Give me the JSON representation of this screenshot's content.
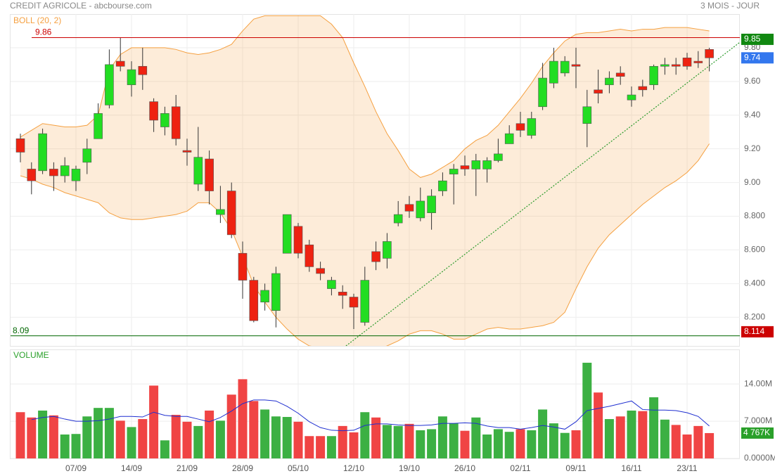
{
  "chart_data": [
    {
      "type": "candlestick",
      "title": "CREDIT AGRICOLE - abcbourse.com",
      "subtitle": "3 MOIS - JOUR",
      "categories": [
        null,
        null,
        null,
        null,
        null,
        "07/09",
        null,
        null,
        null,
        null,
        "14/09",
        null,
        null,
        null,
        null,
        "21/09",
        null,
        null,
        null,
        null,
        "28/09",
        null,
        null,
        null,
        null,
        "05/10",
        null,
        null,
        null,
        null,
        "12/10",
        null,
        null,
        null,
        null,
        "19/10",
        null,
        null,
        null,
        null,
        "26/10",
        null,
        null,
        null,
        null,
        "02/11",
        null,
        null,
        null,
        null,
        "09/11",
        null,
        null,
        null,
        null,
        "16/11",
        null,
        null,
        null,
        null,
        "23/11",
        null,
        null
      ],
      "open": [
        9.26,
        9.08,
        9.07,
        9.08,
        9.04,
        9.01,
        9.12,
        9.26,
        9.46,
        9.72,
        9.58,
        9.69,
        9.48,
        9.33,
        9.45,
        9.19,
        8.99,
        9.14,
        8.81,
        8.95,
        8.58,
        8.42,
        8.29,
        8.24,
        8.58,
        8.74,
        8.63,
        8.49,
        8.37,
        8.35,
        8.32,
        8.17,
        8.59,
        8.55,
        8.76,
        8.87,
        8.79,
        8.82,
        8.95,
        9.05,
        9.1,
        9.08,
        9.08,
        9.13,
        9.23,
        9.35,
        9.28,
        9.45,
        9.59,
        9.65,
        9.7,
        9.35,
        9.55,
        9.58,
        9.65,
        9.49,
        9.57,
        9.58,
        9.69,
        9.7,
        9.74,
        9.72,
        9.79
      ],
      "high": [
        9.29,
        9.12,
        9.32,
        9.12,
        9.15,
        9.1,
        9.26,
        9.47,
        9.79,
        9.86,
        9.72,
        9.8,
        9.5,
        9.45,
        9.52,
        9.26,
        9.33,
        9.19,
        8.98,
        9.0,
        8.65,
        8.44,
        8.4,
        8.5,
        8.81,
        8.76,
        8.66,
        8.53,
        8.44,
        8.39,
        8.34,
        8.5,
        8.65,
        8.7,
        8.89,
        8.92,
        8.97,
        8.96,
        9.06,
        9.11,
        9.16,
        9.17,
        9.15,
        9.26,
        9.34,
        9.42,
        9.42,
        9.71,
        9.8,
        9.75,
        9.8,
        9.55,
        9.67,
        9.66,
        9.69,
        9.57,
        9.61,
        9.7,
        9.74,
        9.74,
        9.77,
        9.78,
        9.8
      ],
      "low": [
        9.12,
        8.93,
        9.05,
        8.95,
        9.0,
        8.95,
        9.05,
        9.26,
        9.44,
        9.66,
        9.51,
        9.55,
        9.3,
        9.28,
        9.22,
        9.1,
        8.95,
        8.87,
        8.76,
        8.67,
        8.31,
        8.17,
        8.24,
        8.14,
        8.58,
        8.55,
        8.47,
        8.42,
        8.33,
        8.25,
        8.13,
        8.15,
        8.48,
        8.49,
        8.74,
        8.79,
        8.77,
        8.72,
        8.92,
        8.87,
        9.04,
        8.92,
        9.0,
        9.12,
        9.23,
        9.27,
        9.26,
        9.43,
        9.56,
        9.63,
        9.56,
        9.21,
        9.47,
        9.53,
        9.58,
        9.45,
        9.51,
        9.55,
        9.64,
        9.64,
        9.67,
        9.68,
        9.66
      ],
      "close": [
        9.18,
        9.01,
        9.29,
        9.04,
        9.1,
        9.08,
        9.2,
        9.41,
        9.7,
        9.69,
        9.67,
        9.64,
        9.37,
        9.41,
        9.26,
        9.18,
        9.15,
        8.95,
        8.84,
        8.69,
        8.42,
        8.18,
        8.36,
        8.46,
        8.81,
        8.58,
        8.5,
        8.46,
        8.42,
        8.33,
        8.26,
        8.42,
        8.53,
        8.65,
        8.81,
        8.83,
        8.89,
        8.92,
        9.01,
        9.08,
        9.08,
        9.13,
        9.13,
        9.17,
        9.29,
        9.31,
        9.38,
        9.62,
        9.72,
        9.72,
        9.69,
        9.45,
        9.53,
        9.62,
        9.63,
        9.52,
        9.55,
        9.69,
        9.7,
        9.69,
        9.69,
        9.71,
        9.74
      ],
      "up_color": "#22dd22",
      "down_color": "#ee2211",
      "ylim": [
        8.03,
        10.0
      ],
      "yticks": [
        {
          "value": 8.2,
          "label": "8.200"
        },
        {
          "value": 8.4,
          "label": "8.400"
        },
        {
          "value": 8.6,
          "label": "8.600"
        },
        {
          "value": 8.8,
          "label": "8.800"
        },
        {
          "value": 9,
          "label": "9.00"
        },
        {
          "value": 9.2,
          "label": "9.20"
        },
        {
          "value": 9.4,
          "label": "9.40"
        },
        {
          "value": 9.6,
          "label": "9.60"
        },
        {
          "value": 9.8,
          "label": "9.80"
        }
      ],
      "grid": true,
      "bands": {
        "name": "BOLL (20, 2)",
        "color": "#f5a040",
        "upper": [
          9.27,
          9.31,
          9.35,
          9.34,
          9.33,
          9.33,
          9.34,
          9.4,
          9.67,
          9.76,
          9.8,
          9.8,
          9.8,
          9.8,
          9.79,
          9.77,
          9.76,
          9.77,
          9.79,
          9.82,
          9.9,
          9.97,
          9.99,
          9.99,
          9.99,
          9.99,
          9.99,
          9.99,
          9.94,
          9.86,
          9.71,
          9.57,
          9.42,
          9.29,
          9.19,
          9.08,
          9.03,
          9.05,
          9.09,
          9.13,
          9.2,
          9.25,
          9.28,
          9.34,
          9.42,
          9.5,
          9.59,
          9.69,
          9.77,
          9.84,
          9.88,
          9.89,
          9.89,
          9.9,
          9.91,
          9.9,
          9.91,
          9.91,
          9.92,
          9.92,
          9.92,
          9.91,
          9.9
        ],
        "lower": [
          9.04,
          9.02,
          8.99,
          8.97,
          8.94,
          8.92,
          8.9,
          8.88,
          8.82,
          8.79,
          8.78,
          8.78,
          8.79,
          8.8,
          8.81,
          8.83,
          8.88,
          8.88,
          8.82,
          8.72,
          8.56,
          8.39,
          8.29,
          8.2,
          8.13,
          8.07,
          8.03,
          8.02,
          8.01,
          8.0,
          8.0,
          8.0,
          8.01,
          8.03,
          8.06,
          8.1,
          8.12,
          8.12,
          8.1,
          8.07,
          8.07,
          8.1,
          8.13,
          8.14,
          8.13,
          8.13,
          8.14,
          8.15,
          8.17,
          8.23,
          8.37,
          8.5,
          8.61,
          8.69,
          8.75,
          8.81,
          8.87,
          8.92,
          8.97,
          9.01,
          9.06,
          9.13,
          9.23
        ]
      },
      "lines": [
        {
          "value": 9.86,
          "color": "#cc0000"
        },
        {
          "value": 8.09,
          "color": "#006600"
        }
      ],
      "price_tags": [
        {
          "value": 9.85,
          "color": "#118811"
        },
        {
          "value": 9.74,
          "color": "#3377ee"
        },
        {
          "value": 8.114,
          "color": "#cc0000"
        }
      ],
      "trendline": {
        "x": [
          29.3,
          64.7
        ],
        "y": [
          8.03,
          9.83
        ],
        "color": "#2a9a2a"
      }
    },
    {
      "type": "bar",
      "title": "VOLUME",
      "values": [
        8.7,
        7.7,
        9.0,
        8.1,
        4.5,
        4.6,
        7.9,
        9.5,
        9.5,
        7.1,
        5.9,
        7.4,
        13.7,
        3.4,
        8.2,
        6.9,
        6.1,
        9.0,
        7.1,
        12.0,
        14.9,
        10.8,
        9.2,
        7.9,
        7.8,
        6.9,
        4.2,
        4.2,
        4.2,
        6.1,
        4.9,
        8.7,
        7.7,
        6.3,
        6.1,
        6.5,
        5.3,
        5.5,
        7.9,
        6.6,
        5.2,
        7.7,
        4.5,
        5.5,
        5.0,
        5.5,
        5.3,
        9.2,
        6.6,
        4.8,
        5.3,
        18.0,
        12.4,
        7.4,
        7.9,
        9.0,
        8.9,
        11.5,
        7.3,
        6.3,
        4.5,
        6.1,
        4.767
      ],
      "value_labels": [
        null,
        null,
        null,
        null,
        null,
        null,
        null,
        null,
        null,
        null,
        null,
        null,
        null,
        null,
        null,
        null,
        null,
        null,
        null,
        null,
        null,
        null,
        null,
        null,
        null,
        null,
        null,
        null,
        null,
        null,
        null,
        null,
        null,
        null,
        null,
        null,
        null,
        null,
        null,
        null,
        null,
        null,
        null,
        null,
        null,
        null,
        null,
        null,
        null,
        null,
        null,
        null,
        null,
        null,
        null,
        null,
        null,
        null,
        null,
        null,
        null,
        null,
        "4 767K"
      ],
      "up_color": "#3cb043",
      "down_color": "#f04444",
      "label_color": "#2aa02a",
      "average": {
        "color": "#1f2fd0",
        "values": [
          null,
          7.3,
          7.7,
          7.9,
          7.4,
          7.0,
          7.0,
          7.1,
          7.4,
          7.9,
          7.9,
          7.8,
          8.7,
          8.1,
          7.9,
          7.9,
          7.4,
          6.9,
          7.7,
          8.9,
          10.3,
          11.0,
          11.0,
          10.8,
          9.8,
          8.5,
          6.9,
          5.8,
          5.3,
          5.2,
          5.3,
          6.2,
          6.5,
          6.5,
          6.3,
          6.2,
          6.2,
          6.3,
          6.6,
          6.6,
          6.7,
          6.6,
          6.1,
          5.8,
          5.8,
          5.5,
          5.8,
          6.2,
          5.9,
          5.5,
          6.9,
          9.0,
          9.4,
          9.8,
          10.3,
          10.8,
          9.2,
          9.1,
          9.1,
          9.0,
          8.6,
          7.9,
          6.1
        ]
      },
      "ylim": [
        0,
        20.5
      ],
      "yticks": [
        {
          "value": 0,
          "label": "0.0000M"
        },
        {
          "value": 7,
          "label": "7.000M"
        },
        {
          "value": 14,
          "label": "14.00M"
        }
      ],
      "grid": true
    }
  ]
}
